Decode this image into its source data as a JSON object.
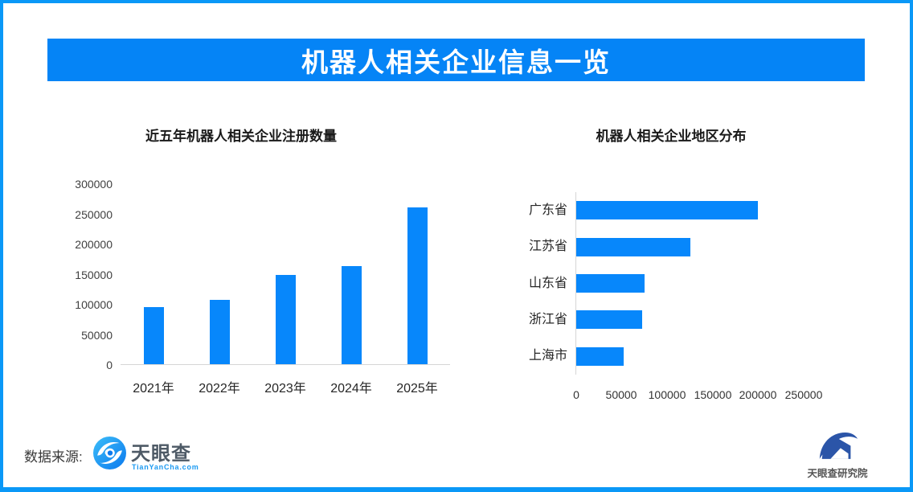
{
  "page": {
    "title": "机器人相关企业信息一览"
  },
  "colors": {
    "accent_blue": "#0584f6",
    "bar_blue": "#0787fb",
    "page_border_blue": "#0a98f7",
    "axis_gray": "#d6d6d6",
    "tianyancha_blue": "#1b9af2",
    "institute_blue": "#2b55a8"
  },
  "chart_data": [
    {
      "type": "bar",
      "orientation": "vertical",
      "title": "近五年机器人相关企业注册数量",
      "categories": [
        "2021年",
        "2022年",
        "2023年",
        "2024年",
        "2025年"
      ],
      "values": [
        95000,
        107000,
        148000,
        163000,
        260000
      ],
      "xlabel": "",
      "ylabel": "",
      "ylim": [
        0,
        300000
      ],
      "yticks": [
        0,
        50000,
        100000,
        150000,
        200000,
        250000,
        300000
      ],
      "grid": false,
      "legend": false
    },
    {
      "type": "bar",
      "orientation": "horizontal",
      "title": "机器人相关企业地区分布",
      "categories": [
        "广东省",
        "江苏省",
        "山东省",
        "浙江省",
        "上海市"
      ],
      "values": [
        200000,
        126000,
        75000,
        73000,
        52000
      ],
      "xlabel": "",
      "ylabel": "",
      "xlim": [
        0,
        300000
      ],
      "xticks": [
        0,
        50000,
        100000,
        150000,
        200000,
        250000
      ],
      "grid": false,
      "legend": false
    }
  ],
  "footer": {
    "source_label": "数据来源:",
    "tianyancha": {
      "name": "天眼查",
      "domain": "TianYanCha.com"
    },
    "institute": {
      "name": "天眼查研究院"
    }
  }
}
